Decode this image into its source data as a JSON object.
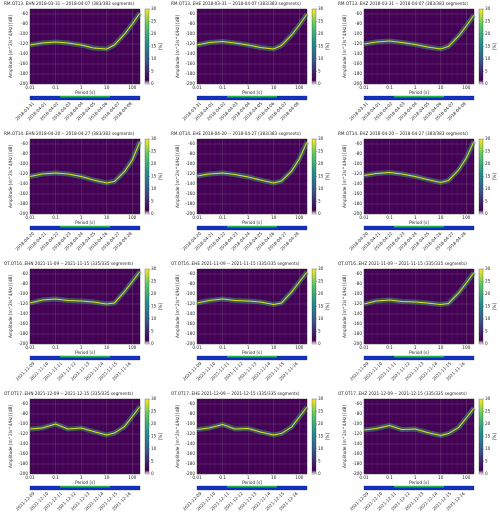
{
  "chart_data": [
    {
      "type": "ppsd",
      "title": "RM.OT13..EHN   2018-03-31 -- 2018-04-07   (383/383 segments)",
      "x_label": "Period [s]",
      "y_label": "Amplitude [m^2/s^4/Hz] [dB]",
      "colorbar_label": "[%]",
      "xlim": [
        0.01,
        200
      ],
      "ylim": [
        -200,
        -50
      ],
      "xticks": [
        0.01,
        0.1,
        1,
        10,
        100
      ],
      "yticks": [
        -200,
        -180,
        -160,
        -140,
        -120,
        -100,
        -80,
        -60
      ],
      "cticks": [
        0,
        5,
        10,
        15,
        20,
        25,
        30
      ],
      "log_x": true,
      "color": "#e4e419",
      "x": [
        0.01,
        0.03,
        0.1,
        0.3,
        1,
        3,
        10,
        20,
        50,
        100,
        200
      ],
      "values": [
        -122,
        -118,
        -116,
        -118,
        -122,
        -128,
        -130,
        -122,
        -100,
        -80,
        -58
      ],
      "dates": [
        "2018-03-31",
        "2018-04-01",
        "2018-04-02",
        "2018-04-03",
        "2018-04-04",
        "2018-04-05",
        "2018-04-06",
        "2018-04-07",
        "2018-04-08"
      ]
    },
    {
      "type": "ppsd",
      "title": "RM.OT13..EHE   2018-03-31 -- 2018-04-07   (383/383 segments)",
      "x_label": "Period [s]",
      "y_label": "Amplitude [m^2/s^4/Hz] [dB]",
      "colorbar_label": "[%]",
      "xlim": [
        0.01,
        200
      ],
      "ylim": [
        -200,
        -50
      ],
      "xticks": [
        0.01,
        0.1,
        1,
        10,
        100
      ],
      "yticks": [
        -200,
        -180,
        -160,
        -140,
        -120,
        -100,
        -80,
        -60
      ],
      "cticks": [
        0,
        5,
        10,
        15,
        20,
        25,
        30
      ],
      "log_x": true,
      "color": "#e4e419",
      "x": [
        0.01,
        0.03,
        0.1,
        0.3,
        1,
        3,
        10,
        20,
        50,
        100,
        200
      ],
      "values": [
        -122,
        -117,
        -115,
        -118,
        -122,
        -127,
        -130,
        -123,
        -102,
        -82,
        -60
      ],
      "dates": [
        "2018-03-31",
        "2018-04-01",
        "2018-04-02",
        "2018-04-03",
        "2018-04-04",
        "2018-04-05",
        "2018-04-06",
        "2018-04-07",
        "2018-04-08"
      ]
    },
    {
      "type": "ppsd",
      "title": "RM.OT13..EHZ   2018-03-31 -- 2018-04-07   (383/383 segments)",
      "x_label": "Period [s]",
      "y_label": "Amplitude [m^2/s^4/Hz] [dB]",
      "colorbar_label": "[%]",
      "xlim": [
        0.01,
        200
      ],
      "ylim": [
        -200,
        -50
      ],
      "xticks": [
        0.01,
        0.1,
        1,
        10,
        100
      ],
      "yticks": [
        -200,
        -180,
        -160,
        -140,
        -120,
        -100,
        -80,
        -60
      ],
      "cticks": [
        0,
        5,
        10,
        15,
        20,
        25,
        30
      ],
      "log_x": true,
      "color": "#e4e419",
      "x": [
        0.01,
        0.03,
        0.1,
        0.3,
        1,
        3,
        10,
        20,
        50,
        100,
        200
      ],
      "values": [
        -120,
        -116,
        -114,
        -117,
        -121,
        -126,
        -130,
        -125,
        -104,
        -84,
        -62
      ],
      "dates": [
        "2018-03-31",
        "2018-04-01",
        "2018-04-02",
        "2018-04-03",
        "2018-04-04",
        "2018-04-05",
        "2018-04-06",
        "2018-04-07",
        "2018-04-08"
      ]
    },
    {
      "type": "ppsd",
      "title": "RM.OT14..EHN   2018-04-20 -- 2018-04-27   (383/383 segments)",
      "x_label": "Period [s]",
      "y_label": "Amplitude [m^2/s^4/Hz] [dB]",
      "colorbar_label": "[%]",
      "xlim": [
        0.01,
        200
      ],
      "ylim": [
        -200,
        -50
      ],
      "xticks": [
        0.01,
        0.1,
        1,
        10,
        100
      ],
      "yticks": [
        -200,
        -180,
        -160,
        -140,
        -120,
        -100,
        -80,
        -60
      ],
      "cticks": [
        0,
        5,
        10,
        15,
        20,
        25,
        30
      ],
      "log_x": true,
      "color": "#e4e419",
      "x": [
        0.01,
        0.03,
        0.1,
        0.3,
        1,
        3,
        10,
        20,
        50,
        100,
        200
      ],
      "values": [
        -125,
        -120,
        -118,
        -120,
        -125,
        -132,
        -138,
        -135,
        -115,
        -92,
        -55
      ],
      "dates": [
        "2018-04-20",
        "2018-04-21",
        "2018-04-22",
        "2018-04-23",
        "2018-04-24",
        "2018-04-25",
        "2018-04-26",
        "2018-04-27",
        "2018-04-28"
      ]
    },
    {
      "type": "ppsd",
      "title": "RM.OT14..EHE   2018-04-20 -- 2018-04-27   (383/383 segments)",
      "x_label": "Period [s]",
      "y_label": "Amplitude [m^2/s^4/Hz] [dB]",
      "colorbar_label": "[%]",
      "xlim": [
        0.01,
        200
      ],
      "ylim": [
        -200,
        -50
      ],
      "xticks": [
        0.01,
        0.1,
        1,
        10,
        100
      ],
      "yticks": [
        -200,
        -180,
        -160,
        -140,
        -120,
        -100,
        -80,
        -60
      ],
      "cticks": [
        0,
        5,
        10,
        15,
        20,
        25,
        30
      ],
      "log_x": true,
      "color": "#e4e419",
      "x": [
        0.01,
        0.03,
        0.1,
        0.3,
        1,
        3,
        10,
        20,
        50,
        100,
        200
      ],
      "values": [
        -124,
        -120,
        -118,
        -121,
        -126,
        -132,
        -138,
        -134,
        -114,
        -90,
        -56
      ],
      "dates": [
        "2018-04-20",
        "2018-04-21",
        "2018-04-22",
        "2018-04-23",
        "2018-04-24",
        "2018-04-25",
        "2018-04-26",
        "2018-04-27",
        "2018-04-28"
      ]
    },
    {
      "type": "ppsd",
      "title": "RM.OT14..EHZ   2018-04-20 -- 2018-04-27   (383/383 segments)",
      "x_label": "Period [s]",
      "y_label": "Amplitude [m^2/s^4/Hz] [dB]",
      "colorbar_label": "[%]",
      "xlim": [
        0.01,
        200
      ],
      "ylim": [
        -200,
        -50
      ],
      "xticks": [
        0.01,
        0.1,
        1,
        10,
        100
      ],
      "yticks": [
        -200,
        -180,
        -160,
        -140,
        -120,
        -100,
        -80,
        -60
      ],
      "cticks": [
        0,
        5,
        10,
        15,
        20,
        25,
        30
      ],
      "log_x": true,
      "color": "#e4e419",
      "x": [
        0.01,
        0.03,
        0.1,
        0.3,
        1,
        3,
        10,
        20,
        50,
        100,
        200
      ],
      "values": [
        -123,
        -119,
        -117,
        -120,
        -125,
        -131,
        -137,
        -133,
        -112,
        -88,
        -55
      ],
      "dates": [
        "2018-04-20",
        "2018-04-21",
        "2018-04-22",
        "2018-04-23",
        "2018-04-24",
        "2018-04-25",
        "2018-04-26",
        "2018-04-27",
        "2018-04-28"
      ]
    },
    {
      "type": "ppsd",
      "title": "OT.OT16..EHN   2021-11-09 -- 2021-11-15   (335/335 segments)",
      "x_label": "Period [s]",
      "y_label": "Amplitude [m^2/s^4/Hz] [dB]",
      "colorbar_label": "[%]",
      "xlim": [
        0.01,
        200
      ],
      "ylim": [
        -200,
        -50
      ],
      "xticks": [
        0.01,
        0.1,
        1,
        10,
        100
      ],
      "yticks": [
        -200,
        -180,
        -160,
        -140,
        -120,
        -100,
        -80,
        -60
      ],
      "cticks": [
        0,
        5,
        10,
        15,
        20,
        25,
        30
      ],
      "log_x": true,
      "color": "#e4e419",
      "x": [
        0.01,
        0.03,
        0.1,
        0.3,
        1,
        3,
        10,
        20,
        50,
        100,
        200
      ],
      "values": [
        -118,
        -112,
        -110,
        -113,
        -114,
        -116,
        -120,
        -118,
        -95,
        -75,
        -55
      ],
      "dates": [
        "2021-11-09",
        "2021-11-10",
        "2021-11-11",
        "2021-11-12",
        "2021-11-13",
        "2021-11-14",
        "2021-11-15",
        "2021-11-16"
      ]
    },
    {
      "type": "ppsd",
      "title": "OT.OT16..EHE   2021-11-09 -- 2021-11-15   (335/335 segments)",
      "x_label": "Period [s]",
      "y_label": "Amplitude [m^2/s^4/Hz] [dB]",
      "colorbar_label": "[%]",
      "xlim": [
        0.01,
        200
      ],
      "ylim": [
        -200,
        -50
      ],
      "xticks": [
        0.01,
        0.1,
        1,
        10,
        100
      ],
      "yticks": [
        -200,
        -180,
        -160,
        -140,
        -120,
        -100,
        -80,
        -60
      ],
      "cticks": [
        0,
        5,
        10,
        15,
        20,
        25,
        30
      ],
      "log_x": true,
      "color": "#e4e419",
      "x": [
        0.01,
        0.03,
        0.1,
        0.3,
        1,
        3,
        10,
        20,
        50,
        100,
        200
      ],
      "values": [
        -118,
        -113,
        -110,
        -113,
        -114,
        -116,
        -121,
        -118,
        -96,
        -76,
        -56
      ],
      "dates": [
        "2021-11-09",
        "2021-11-10",
        "2021-11-11",
        "2021-11-12",
        "2021-11-13",
        "2021-11-14",
        "2021-11-15",
        "2021-11-16"
      ]
    },
    {
      "type": "ppsd",
      "title": "OT.OT16..EHZ   2021-11-09 -- 2021-11-15   (335/335 segments)",
      "x_label": "Period [s]",
      "y_label": "Amplitude [m^2/s^4/Hz] [dB]",
      "colorbar_label": "[%]",
      "xlim": [
        0.01,
        200
      ],
      "ylim": [
        -200,
        -50
      ],
      "xticks": [
        0.01,
        0.1,
        1,
        10,
        100
      ],
      "yticks": [
        -200,
        -180,
        -160,
        -140,
        -120,
        -100,
        -80,
        -60
      ],
      "cticks": [
        0,
        5,
        10,
        15,
        20,
        25,
        30
      ],
      "log_x": true,
      "color": "#e4e419",
      "x": [
        0.01,
        0.03,
        0.1,
        0.3,
        1,
        3,
        10,
        20,
        50,
        100,
        200
      ],
      "values": [
        -120,
        -114,
        -112,
        -115,
        -116,
        -118,
        -121,
        -119,
        -98,
        -78,
        -57
      ],
      "dates": [
        "2021-11-09",
        "2021-11-10",
        "2021-11-11",
        "2021-11-12",
        "2021-11-13",
        "2021-11-14",
        "2021-11-15",
        "2021-11-16"
      ]
    },
    {
      "type": "ppsd",
      "title": "OT.OT17..EHN   2021-12-09 -- 2021-12-15   (335/335 segments)",
      "x_label": "Period [s]",
      "y_label": "Amplitude [m^2/s^4/Hz] [dB]",
      "colorbar_label": "[%]",
      "xlim": [
        0.01,
        200
      ],
      "ylim": [
        -200,
        -50
      ],
      "xticks": [
        0.01,
        0.1,
        1,
        10,
        100
      ],
      "yticks": [
        -200,
        -180,
        -160,
        -140,
        -120,
        -100,
        -80,
        -60
      ],
      "cticks": [
        0,
        5,
        10,
        15,
        20,
        25,
        30
      ],
      "log_x": true,
      "color": "#e4e419",
      "x": [
        0.01,
        0.03,
        0.1,
        0.3,
        1,
        3,
        10,
        20,
        50,
        100,
        200
      ],
      "values": [
        -110,
        -108,
        -100,
        -110,
        -108,
        -115,
        -122,
        -118,
        -105,
        -85,
        -65
      ],
      "dates": [
        "2021-12-09",
        "2021-12-10",
        "2021-12-11",
        "2021-12-12",
        "2021-12-13",
        "2021-12-14",
        "2021-12-15",
        "2021-12-16"
      ]
    },
    {
      "type": "ppsd",
      "title": "OT.OT17..EHE   2021-12-09 -- 2021-12-15   (335/335 segments)",
      "x_label": "Period [s]",
      "y_label": "Amplitude [m^2/s^4/Hz] [dB]",
      "colorbar_label": "[%]",
      "xlim": [
        0.01,
        200
      ],
      "ylim": [
        -200,
        -50
      ],
      "xticks": [
        0.01,
        0.1,
        1,
        10,
        100
      ],
      "yticks": [
        -200,
        -180,
        -160,
        -140,
        -120,
        -100,
        -80,
        -60
      ],
      "cticks": [
        0,
        5,
        10,
        15,
        20,
        25,
        30
      ],
      "log_x": true,
      "color": "#e4e419",
      "x": [
        0.01,
        0.03,
        0.1,
        0.3,
        1,
        3,
        10,
        20,
        50,
        100,
        200
      ],
      "values": [
        -111,
        -108,
        -101,
        -110,
        -109,
        -116,
        -122,
        -119,
        -106,
        -86,
        -66
      ],
      "dates": [
        "2021-12-09",
        "2021-12-10",
        "2021-12-11",
        "2021-12-12",
        "2021-12-13",
        "2021-12-14",
        "2021-12-15",
        "2021-12-16"
      ]
    },
    {
      "type": "ppsd",
      "title": "OT.OT17..EHZ   2021-12-09 -- 2021-12-15   (335/335 segments)",
      "x_label": "Period [s]",
      "y_label": "Amplitude [m^2/s^4/Hz] [dB]",
      "colorbar_label": "[%]",
      "xlim": [
        0.01,
        200
      ],
      "ylim": [
        -200,
        -50
      ],
      "xticks": [
        0.01,
        0.1,
        1,
        10,
        100
      ],
      "yticks": [
        -200,
        -180,
        -160,
        -140,
        -120,
        -100,
        -80,
        -60
      ],
      "cticks": [
        0,
        5,
        10,
        15,
        20,
        25,
        30
      ],
      "log_x": true,
      "color": "#e4e419",
      "x": [
        0.01,
        0.03,
        0.1,
        0.3,
        1,
        3,
        10,
        20,
        50,
        100,
        200
      ],
      "values": [
        -112,
        -109,
        -103,
        -111,
        -110,
        -117,
        -123,
        -119,
        -107,
        -88,
        -68
      ],
      "dates": [
        "2021-12-09",
        "2021-12-10",
        "2021-12-11",
        "2021-12-12",
        "2021-12-13",
        "2021-12-14",
        "2021-12-15",
        "2021-12-16"
      ]
    }
  ]
}
